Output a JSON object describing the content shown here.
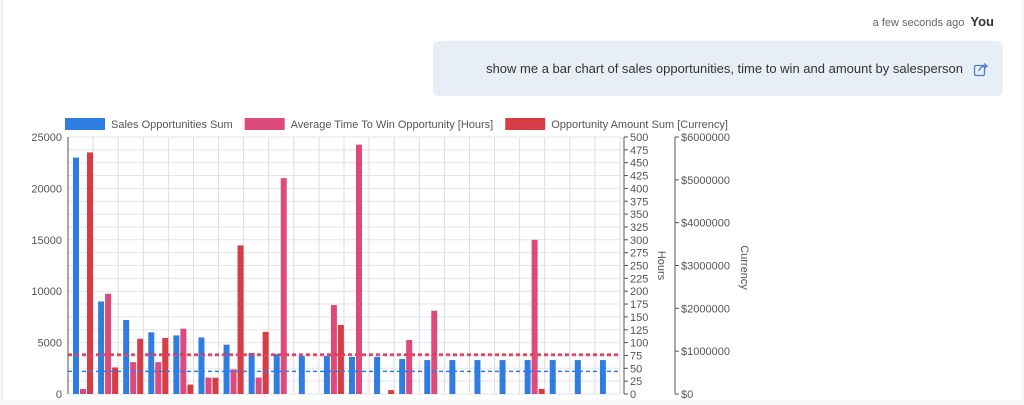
{
  "message": {
    "timestamp": "a few seconds ago",
    "author": "You",
    "text": "show me a bar chart of sales opportunities, time to win and amount by salesperson"
  },
  "icons": {
    "share": "share-icon"
  },
  "colors": {
    "blue": "#2f7de1",
    "pink": "#dd4a7b",
    "red": "#d63d47",
    "grid": "#e4e4ea",
    "vgrid": "#e0d8e6",
    "axis": "#555555",
    "text": "#555555"
  },
  "chart_data": {
    "type": "bar",
    "legend_position": "top",
    "categories_count": 22,
    "series": [
      {
        "name": "Sales Opportunities Sum",
        "axis": "left",
        "values": [
          23000,
          9000,
          7200,
          6000,
          5700,
          5500,
          4800,
          4000,
          3900,
          3700,
          3700,
          3600,
          3600,
          3400,
          3300,
          3300,
          3300,
          3300,
          3300,
          3300,
          3300,
          3300
        ]
      },
      {
        "name": "Average Time To Win Opportunity [Hours]",
        "axis": "hours",
        "values": [
          10,
          195,
          62,
          62,
          127,
          32,
          48,
          32,
          420,
          0,
          173,
          485,
          0,
          105,
          162,
          0,
          0,
          0,
          300,
          0,
          0,
          0
        ]
      },
      {
        "name": "Opportunity Amount Sum [Currency]",
        "axis": "currency",
        "values": [
          5640000,
          620000,
          1290000,
          1310000,
          220000,
          380000,
          3470000,
          1450000,
          0,
          0,
          1610000,
          0,
          90000,
          0,
          0,
          0,
          0,
          0,
          120000,
          0,
          0,
          0
        ]
      }
    ],
    "axes": {
      "left": {
        "min": 0,
        "max": 25000,
        "ticks": [
          "0",
          "5000",
          "10000",
          "15000",
          "20000",
          "25000"
        ]
      },
      "hours": {
        "min": 0,
        "max": 500,
        "label": "Hours",
        "ticks": [
          "0",
          "25",
          "50",
          "75",
          "100",
          "125",
          "150",
          "175",
          "200",
          "225",
          "250",
          "275",
          "300",
          "325",
          "350",
          "375",
          "400",
          "425",
          "450",
          "475",
          "500"
        ]
      },
      "currency": {
        "min": 0,
        "max": 6000000,
        "label": "Currency",
        "ticks": [
          "$0",
          "$1000000",
          "$2000000",
          "$3000000",
          "$4000000",
          "$5000000",
          "$6000000"
        ]
      }
    },
    "reference_lines": [
      {
        "series": "Sales Opportunities Sum",
        "value": 2200
      },
      {
        "series": "Average Time To Win Opportunity [Hours]",
        "value": 75
      },
      {
        "series": "Opportunity Amount Sum [Currency]",
        "value": 930000
      }
    ],
    "grid": true
  }
}
